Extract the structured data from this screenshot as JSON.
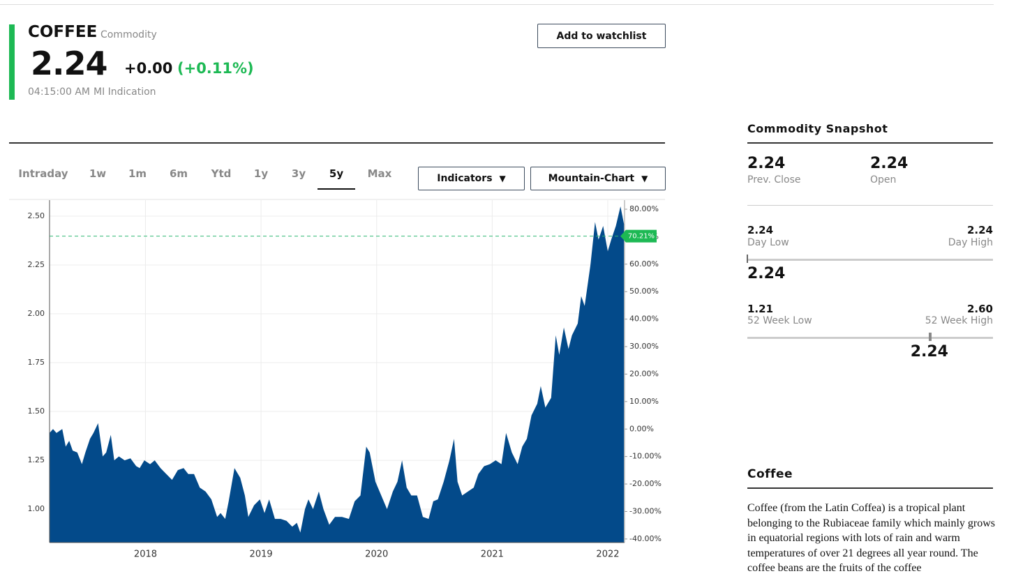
{
  "header": {
    "name": "COFFEE",
    "kind": "Commodity",
    "price": "2.24",
    "change": "+0.00",
    "change_percent": "(+0.11%)",
    "time": "04:15:00 AM",
    "source": "MI Indication",
    "watchlist_button": "Add to watchlist"
  },
  "tabs": [
    "Intraday",
    "1w",
    "1m",
    "6m",
    "Ytd",
    "1y",
    "3y",
    "5y",
    "Max"
  ],
  "active_tab_index": 7,
  "dropdowns": [
    "Indicators",
    "Mountain-Chart"
  ],
  "chart_data": {
    "type": "area",
    "color": "#034a8a",
    "x": [
      2017.17,
      2017.2,
      2017.23,
      2017.28,
      2017.31,
      2017.34,
      2017.37,
      2017.41,
      2017.45,
      2017.48,
      2017.52,
      2017.55,
      2017.59,
      2017.63,
      2017.66,
      2017.7,
      2017.73,
      2017.77,
      2017.82,
      2017.87,
      2017.92,
      2017.95,
      2017.99,
      2018.04,
      2018.08,
      2018.13,
      2018.18,
      2018.23,
      2018.28,
      2018.33,
      2018.37,
      2018.42,
      2018.47,
      2018.52,
      2018.57,
      2018.62,
      2018.65,
      2018.69,
      2018.72,
      2018.77,
      2018.82,
      2018.86,
      2018.89,
      2018.94,
      2018.99,
      2019.03,
      2019.07,
      2019.12,
      2019.17,
      2019.22,
      2019.27,
      2019.31,
      2019.34,
      2019.38,
      2019.41,
      2019.45,
      2019.5,
      2019.54,
      2019.59,
      2019.64,
      2019.7,
      2019.76,
      2019.81,
      2019.86,
      2019.91,
      2019.94,
      2019.99,
      2020.04,
      2020.09,
      2020.14,
      2020.18,
      2020.22,
      2020.26,
      2020.3,
      2020.35,
      2020.4,
      2020.45,
      2020.49,
      2020.53,
      2020.58,
      2020.63,
      2020.67,
      2020.7,
      2020.74,
      2020.79,
      2020.84,
      2020.88,
      2020.93,
      2020.98,
      2021.03,
      2021.08,
      2021.12,
      2021.17,
      2021.22,
      2021.26,
      2021.3,
      2021.34,
      2021.39,
      2021.42,
      2021.46,
      2021.51,
      2021.55,
      2021.58,
      2021.62,
      2021.66,
      2021.69,
      2021.74,
      2021.77,
      2021.8,
      2021.85,
      2021.89,
      2021.92,
      2021.96,
      2022.0,
      2022.03,
      2022.07,
      2022.11,
      2022.14
    ],
    "values": [
      1.39,
      1.41,
      1.39,
      1.41,
      1.32,
      1.35,
      1.3,
      1.29,
      1.23,
      1.29,
      1.36,
      1.39,
      1.44,
      1.27,
      1.29,
      1.38,
      1.25,
      1.27,
      1.25,
      1.26,
      1.22,
      1.21,
      1.25,
      1.23,
      1.25,
      1.21,
      1.18,
      1.15,
      1.2,
      1.21,
      1.18,
      1.18,
      1.11,
      1.09,
      1.05,
      0.96,
      0.98,
      0.95,
      1.04,
      1.21,
      1.16,
      1.07,
      0.96,
      1.02,
      1.05,
      0.98,
      1.05,
      0.95,
      0.95,
      0.94,
      0.91,
      0.93,
      0.88,
      1.0,
      1.05,
      1.0,
      1.09,
      1.0,
      0.92,
      0.96,
      0.96,
      0.95,
      1.04,
      1.07,
      1.32,
      1.29,
      1.14,
      1.07,
      1.0,
      1.09,
      1.14,
      1.25,
      1.11,
      1.07,
      1.07,
      0.96,
      0.95,
      1.04,
      1.05,
      1.14,
      1.25,
      1.36,
      1.14,
      1.07,
      1.09,
      1.11,
      1.18,
      1.22,
      1.23,
      1.25,
      1.23,
      1.39,
      1.29,
      1.23,
      1.32,
      1.36,
      1.48,
      1.54,
      1.63,
      1.52,
      1.57,
      1.89,
      1.79,
      1.93,
      1.82,
      1.89,
      1.95,
      2.09,
      2.04,
      2.25,
      2.47,
      2.38,
      2.45,
      2.32,
      2.38,
      2.45,
      2.55,
      2.46
    ],
    "xlim": [
      2017.17,
      2022.145
    ],
    "xticks": [
      2018,
      2019,
      2020,
      2021,
      2022
    ],
    "ylim": [
      0.829,
      2.582
    ],
    "yticks": [
      {
        "value": 1.0,
        "label": "1.00"
      },
      {
        "value": 1.25,
        "label": "1.25"
      },
      {
        "value": 1.5,
        "label": "1.50"
      },
      {
        "value": 1.75,
        "label": "1.75"
      },
      {
        "value": 2.0,
        "label": "2.00"
      },
      {
        "value": 2.25,
        "label": "2.25"
      },
      {
        "value": 2.5,
        "label": "2.50"
      }
    ],
    "y2lim": [
      -41.3,
      83.3
    ],
    "y2ticks": [
      {
        "value": 80,
        "label": "80.00%"
      },
      {
        "value": 70,
        "label": "70.00%"
      },
      {
        "value": 60,
        "label": "60.00%"
      },
      {
        "value": 50,
        "label": "50.00%"
      },
      {
        "value": 40,
        "label": "40.00%"
      },
      {
        "value": 30,
        "label": "30.00%"
      },
      {
        "value": 20,
        "label": "20.00%"
      },
      {
        "value": 10,
        "label": "10.00%"
      },
      {
        "value": 0,
        "label": "0.00%"
      },
      {
        "value": -10,
        "label": "-10.00%"
      },
      {
        "value": -20,
        "label": "-20.00%"
      },
      {
        "value": -30,
        "label": "-30.00%"
      },
      {
        "value": -40,
        "label": "-40.00%"
      }
    ],
    "current_marker": {
      "value": 70.21,
      "label": "70.21%",
      "axis": "y2"
    },
    "grid": true
  },
  "snapshot": {
    "title": "Commodity Snapshot",
    "prev_close": {
      "value": "2.24",
      "label": "Prev. Close"
    },
    "open": {
      "value": "2.24",
      "label": "Open"
    },
    "day_low": {
      "value": "2.24",
      "label": "Day Low"
    },
    "day_high": {
      "value": "2.24",
      "label": "Day High"
    },
    "day_current": "2.24",
    "week52_low": {
      "value": "1.21",
      "label": "52 Week Low"
    },
    "week52_high": {
      "value": "2.60",
      "label": "52 Week High"
    },
    "week52_current": "2.24"
  },
  "description": {
    "title": "Coffee",
    "text": "Coffee (from the Latin Coffea) is a tropical plant belonging to the Rubiaceae family which mainly grows in equatorial regions with lots of rain and warm temperatures of over 21 degrees all year round. The coffee beans are the fruits of the coffee"
  }
}
